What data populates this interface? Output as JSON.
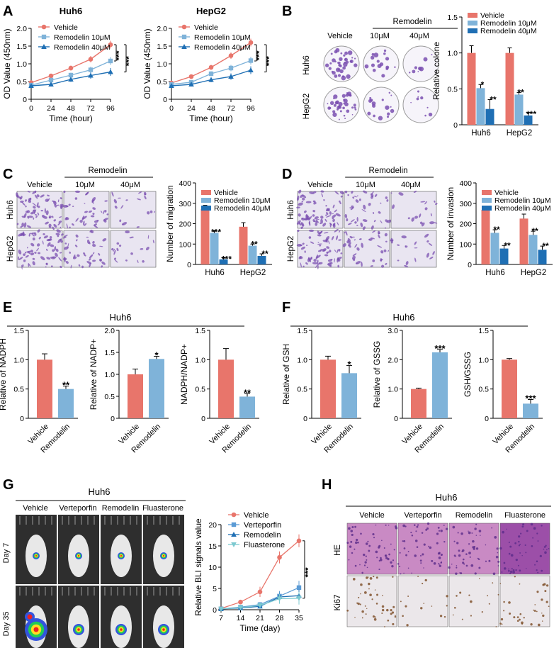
{
  "colors": {
    "salmon": "#e8756b",
    "lightblue": "#7fb3d9",
    "midblue": "#5b9bd5",
    "darkblue": "#1f6fb4",
    "teal": "#7cc9d0",
    "purple": "#7a4fb0",
    "axis": "#000000"
  },
  "panel_letters": [
    "A",
    "B",
    "C",
    "D",
    "E",
    "F",
    "G",
    "H"
  ],
  "panel_a": {
    "charts": [
      {
        "type": "line",
        "title": "Huh6",
        "xlabel": "Time (hour)",
        "ylabel": "OD Value (450nm)",
        "x": [
          0,
          24,
          48,
          72,
          96
        ],
        "xlim": [
          0,
          96
        ],
        "ylim": [
          0,
          2.0
        ],
        "yticks": [
          "0",
          "0.5",
          "1.0",
          "1.5",
          "2.0"
        ],
        "xticks": [
          "0",
          "24",
          "48",
          "72",
          "96"
        ],
        "series": [
          {
            "name": "Vehicle",
            "values": [
              0.47,
              0.66,
              0.88,
              1.13,
              1.54
            ]
          },
          {
            "name": "Remodelin 10μM",
            "values": [
              0.4,
              0.54,
              0.68,
              0.83,
              1.08
            ]
          },
          {
            "name": "Remodelin 40μM",
            "values": [
              0.38,
              0.42,
              0.56,
              0.67,
              0.77
            ]
          }
        ],
        "sig": [
          "***",
          "***"
        ]
      },
      {
        "type": "line",
        "title": "HepG2",
        "xlabel": "Time (hour)",
        "ylabel": "OD Value (450nm)",
        "x": [
          0,
          24,
          48,
          72,
          96
        ],
        "xlim": [
          0,
          96
        ],
        "ylim": [
          0,
          2.0
        ],
        "yticks": [
          "0",
          "0.5",
          "1.0",
          "1.5",
          "2.0"
        ],
        "xticks": [
          "0",
          "24",
          "48",
          "72",
          "96"
        ],
        "series": [
          {
            "name": "Vehicle",
            "values": [
              0.46,
              0.64,
              0.9,
              1.23,
              1.6
            ]
          },
          {
            "name": "Remodelin 10μM",
            "values": [
              0.42,
              0.48,
              0.72,
              0.88,
              1.09
            ]
          },
          {
            "name": "Remodelin 40μM",
            "values": [
              0.38,
              0.42,
              0.55,
              0.64,
              0.82
            ]
          }
        ],
        "sig": [
          "***",
          "***"
        ]
      }
    ],
    "legend": [
      "Vehicle",
      "Remodelin 10μM",
      "Remodelin 40μM"
    ]
  },
  "panel_b": {
    "images": {
      "header_group": "Remodelin",
      "cols": [
        "Vehicle",
        "10μM",
        "40μM"
      ],
      "rows": [
        "Huh6",
        "HepG2"
      ]
    },
    "chart": {
      "type": "bar",
      "categories": [
        "Huh6",
        "HepG2"
      ],
      "ylabel": "Relative colone",
      "ylim": [
        0,
        1.5
      ],
      "yticks": [
        "0",
        "0.5",
        "1.0",
        "1.5"
      ],
      "series": [
        {
          "name": "Vehicle",
          "values": [
            1.0,
            1.0
          ],
          "errors": [
            0.1,
            0.07
          ]
        },
        {
          "name": "Remodelin 10μM",
          "values": [
            0.51,
            0.42
          ],
          "errors": [
            0.05,
            0.03
          ]
        },
        {
          "name": "Remodelin 40μM",
          "values": [
            0.22,
            0.13
          ],
          "errors": [
            0.13,
            0.04
          ]
        }
      ],
      "sig": [
        [
          "",
          "*",
          "**"
        ],
        [
          "",
          "**",
          "***"
        ]
      ]
    }
  },
  "panel_c": {
    "images": {
      "header_group": "Remodelin",
      "cols": [
        "Vehicle",
        "10μM",
        "40μM"
      ],
      "rows": [
        "Huh6",
        "HepG2"
      ]
    },
    "chart": {
      "type": "bar",
      "categories": [
        "Huh6",
        "HepG2"
      ],
      "ylabel": "Number of migration",
      "ylim": [
        0,
        400
      ],
      "yticks": [
        "0",
        "100",
        "200",
        "300",
        "400"
      ],
      "series": [
        {
          "name": "Vehicle",
          "values": [
            272,
            185
          ],
          "errors": [
            18,
            20
          ]
        },
        {
          "name": "Remodelin 10μM",
          "values": [
            155,
            92
          ],
          "errors": [
            10,
            8
          ]
        },
        {
          "name": "Remodelin 40μM",
          "values": [
            25,
            42
          ],
          "errors": [
            8,
            10
          ]
        }
      ],
      "sig": [
        [
          "",
          "***",
          "***"
        ],
        [
          "",
          "**",
          "**"
        ]
      ]
    }
  },
  "panel_d": {
    "images": {
      "header_group": "Remodelin",
      "cols": [
        "Vehicle",
        "10μM",
        "40μM"
      ],
      "rows": [
        "Huh6",
        "HepG2"
      ]
    },
    "chart": {
      "type": "bar",
      "categories": [
        "Huh6",
        "HepG2"
      ],
      "ylabel": "Number of invasion",
      "ylim": [
        0,
        400
      ],
      "yticks": [
        "0",
        "100",
        "200",
        "300",
        "400"
      ],
      "series": [
        {
          "name": "Vehicle",
          "values": [
            268,
            225
          ],
          "errors": [
            18,
            22
          ]
        },
        {
          "name": "Remodelin 10μM",
          "values": [
            155,
            145
          ],
          "errors": [
            15,
            18
          ]
        },
        {
          "name": "Remodelin 40μM",
          "values": [
            78,
            72
          ],
          "errors": [
            15,
            18
          ]
        }
      ],
      "sig": [
        [
          "",
          "**",
          "**"
        ],
        [
          "",
          "**",
          "**"
        ]
      ]
    }
  },
  "panel_e": {
    "group_title": "Huh6",
    "charts": [
      {
        "type": "bar",
        "categories": [
          "Vehicle",
          "Remodelin"
        ],
        "ylabel": "Relative of NADPH",
        "ylim": [
          0,
          1.5
        ],
        "yticks": [
          "0",
          "0.5",
          "1.0",
          "1.5"
        ],
        "values": [
          1.0,
          0.5
        ],
        "errors": [
          0.1,
          0.05
        ],
        "sig": [
          "",
          "**"
        ]
      },
      {
        "type": "bar",
        "categories": [
          "Vehicle",
          "Remodelin"
        ],
        "ylabel": "Relative of NADP+",
        "ylim": [
          0,
          2.0
        ],
        "yticks": [
          "0",
          "0.5",
          "1.0",
          "1.5",
          "2.0"
        ],
        "values": [
          1.0,
          1.35
        ],
        "errors": [
          0.12,
          0.06
        ],
        "sig": [
          "",
          "*"
        ]
      },
      {
        "type": "bar",
        "categories": [
          "Vehicle",
          "Remodelin"
        ],
        "ylabel": "NADPH/NADP+",
        "ylim": [
          0,
          1.5
        ],
        "yticks": [
          "0",
          "0.5",
          "1.0",
          "1.5"
        ],
        "values": [
          1.0,
          0.37
        ],
        "errors": [
          0.19,
          0.05
        ],
        "sig": [
          "",
          "**"
        ]
      }
    ]
  },
  "panel_f": {
    "group_title": "Huh6",
    "charts": [
      {
        "type": "bar",
        "categories": [
          "Vehicle",
          "Remodelin"
        ],
        "ylabel": "Relative of GSH",
        "ylim": [
          0,
          1.5
        ],
        "yticks": [
          "0",
          "0.5",
          "1.0",
          "1.5"
        ],
        "values": [
          1.0,
          0.77
        ],
        "errors": [
          0.06,
          0.13
        ],
        "sig": [
          "",
          "*"
        ]
      },
      {
        "type": "bar",
        "categories": [
          "Vehicle",
          "Remodelin"
        ],
        "ylabel": "Relative of GSSG",
        "ylim": [
          0,
          3.0
        ],
        "yticks": [
          "0",
          "1.0",
          "2.0",
          "3.0"
        ],
        "values": [
          1.0,
          2.25
        ],
        "errors": [
          0.03,
          0.1
        ],
        "sig": [
          "",
          "***"
        ]
      },
      {
        "type": "bar",
        "categories": [
          "Vehicle",
          "Remodelin"
        ],
        "ylabel": "GSH/GSSG",
        "ylim": [
          0,
          1.5
        ],
        "yticks": [
          "0",
          "0.5",
          "1.0",
          "1.5"
        ],
        "values": [
          1.0,
          0.25
        ],
        "errors": [
          0.02,
          0.07
        ],
        "sig": [
          "",
          "***"
        ]
      }
    ]
  },
  "panel_g": {
    "group_title": "Huh6",
    "images": {
      "cols": [
        "Vehicle",
        "Verteporfin",
        "Remodelin",
        "Fluasterone"
      ],
      "rows": [
        "Day 7",
        "Day 35"
      ]
    },
    "chart": {
      "type": "line",
      "xlabel": "Time (day)",
      "ylabel": "Relative BLI signals value",
      "x": [
        7,
        14,
        21,
        28,
        35
      ],
      "xticks": [
        "7",
        "14",
        "21",
        "28",
        "35"
      ],
      "ylim": [
        0,
        20
      ],
      "yticks": [
        "0",
        "5",
        "10",
        "15",
        "20"
      ],
      "series": [
        {
          "name": "Vehicle",
          "values": [
            0.3,
            1.8,
            4.2,
            12.3,
            16.2
          ],
          "errors": [
            0.3,
            0.5,
            1.2,
            1.4,
            1.5
          ]
        },
        {
          "name": "Verteporfin",
          "values": [
            0.2,
            0.6,
            1.2,
            3.2,
            5.2
          ],
          "errors": [
            0.2,
            0.4,
            0.6,
            1.2,
            1.6
          ]
        },
        {
          "name": "Remodelin",
          "values": [
            0.2,
            0.4,
            0.8,
            3.0,
            3.3
          ],
          "errors": [
            0.2,
            0.3,
            0.5,
            1.0,
            1.4
          ]
        },
        {
          "name": "Fluasterone",
          "values": [
            0.2,
            0.5,
            1.0,
            2.6,
            2.7
          ],
          "errors": [
            0.2,
            0.3,
            0.6,
            1.2,
            1.5
          ]
        }
      ],
      "sig": "***"
    }
  },
  "panel_h": {
    "group_title": "Huh6",
    "images": {
      "cols": [
        "Vehicle",
        "Verteporfin",
        "Remodelin",
        "Fluasterone"
      ],
      "rows": [
        "HE",
        "Ki67"
      ]
    }
  }
}
